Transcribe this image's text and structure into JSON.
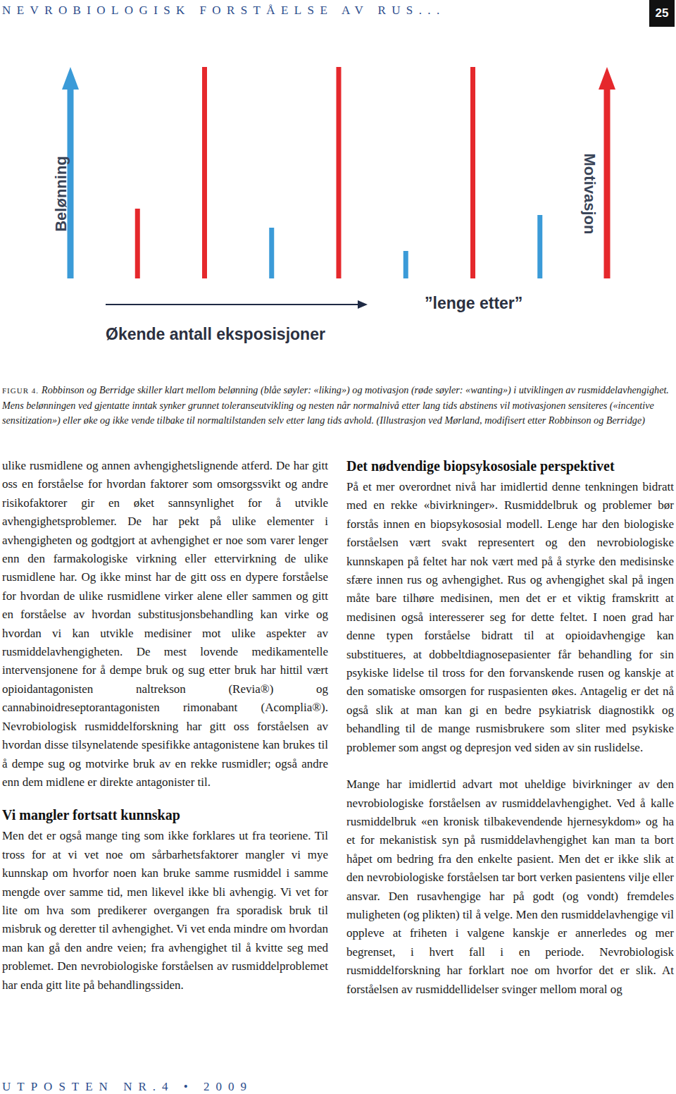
{
  "header": {
    "running_title": "NEVROBIOLOGISK FORSTÅELSE AV RUS...",
    "page_number": "25"
  },
  "chart_data": {
    "type": "bar",
    "categories": [
      null,
      null,
      null,
      null,
      null,
      null,
      null,
      null,
      null
    ],
    "series": [
      {
        "name": "Belønning",
        "color": "#3b9bd8",
        "values": [
          100,
          null,
          null,
          24,
          null,
          13,
          null,
          30,
          null
        ]
      },
      {
        "name": "Motivasjon",
        "color": "#e5282c",
        "values": [
          null,
          33,
          100,
          null,
          100,
          null,
          100,
          null,
          100
        ]
      }
    ],
    "ylim": [
      0,
      100
    ],
    "tick_labels": false,
    "x_label": "Økende antall eksposisjoner",
    "annotation": "”lenge etter”"
  },
  "caption": {
    "label": "FIGUR 4.",
    "text": "Robbinson og Berridge skiller klart mellom belønning (blåe søyler: «liking») og motivasjon (røde søyler: «wanting») i utviklingen av rusmiddelavhengighet. Mens belønningen ved gjentatte inntak synker grunnet toleranseutvikling og nesten når normalnivå etter lang tids abstinens vil motivasjonen sensiteres («incentive sensitization») eller øke og ikke vende tilbake til normaltilstanden selv etter lang tids avhold. (Illustrasjon ved Mørland, modifisert etter Robbinson og Berridge)"
  },
  "body": {
    "left_column": [
      {
        "type": "paragraph",
        "text": "ulike rusmidlene og annen avhengighetslignende atferd. De har gitt oss en forståelse for hvordan faktorer som omsorgssvikt og andre risikofaktorer gir en øket sannsynlighet for å utvikle avhengighetsproblemer. De har pekt på ulike elementer i avhengigheten og godtgjort at avhengighet er noe som varer lenger enn den farmakologiske virkning eller ettervirkning de ulike rusmidlene har. Og ikke minst har de gitt oss en dypere forståelse for hvordan de ulike rusmidlene virker alene eller sammen og gitt en forståelse av hvordan substitusjonsbehandling kan virke og hvordan vi kan utvikle medisiner mot ulike aspekter av rusmiddelavhengigheten. De mest lovende medikamentelle intervensjonene for å dempe bruk og sug etter bruk har hittil vært opioidantagonisten naltrekson (Revia®) og cannabinoidreseptorantagonisten rimonabant (Acomplia®). Nevrobiologisk rusmiddelforskning har gitt oss forståelsen av hvordan disse tilsynelatende spesifikke antagonistene kan brukes til å dempe sug og motvirke bruk av en rekke rusmidler; også andre enn dem midlene er direkte antagonister til."
      },
      {
        "type": "heading",
        "text": "Vi mangler fortsatt kunnskap"
      },
      {
        "type": "paragraph",
        "text": "Men det er også mange ting som ikke forklares ut fra teoriene. Til tross for at vi vet noe om sårbarhetsfaktorer mangler vi mye kunnskap om hvorfor noen kan bruke samme rusmiddel i samme mengde over samme tid, men likevel ikke bli avhengig. Vi vet for lite om hva som predikerer overgangen fra sporadisk bruk til misbruk og deretter til avhengighet. Vi vet enda mindre om hvordan man kan gå den andre veien; fra avhengighet til å kvitte seg med problemet. Den nevrobiologiske forståelsen av rusmiddelproblemet har enda gitt lite på behandlingssiden."
      }
    ],
    "right_column": [
      {
        "type": "heading",
        "text": "Det nødvendige biopsykososiale perspektivet"
      },
      {
        "type": "paragraph",
        "text": "På et mer overordnet nivå har imidlertid denne tenkningen bidratt med en rekke «bivirkninger». Rusmiddelbruk og problemer bør forstås innen en biopsykososial modell. Lenge har den biologiske forståelsen vært svakt representert og den nevrobiologiske kunnskapen på feltet har nok vært med på å styrke den medisinske sfære innen rus og avhengighet. Rus og avhengighet skal på ingen måte bare tilhøre medisinen, men det er et viktig framskritt at medisinen også interesserer seg for dette feltet. I noen grad har denne typen forståelse bidratt til at opioidavhengige kan substitueres, at dobbeltdiagnosepasienter får behandling for sin psykiske lidelse til tross for den forvanskende rusen og kanskje at den somatiske omsorgen for ruspasienten økes. Antagelig er det nå også slik at man kan gi en bedre psykiatrisk diagnostikk og behandling til de mange rusmisbrukere som sliter med psykiske problemer som angst og depresjon ved siden av sin ruslidelse."
      },
      {
        "type": "paragraph",
        "text": "Mange har imidlertid advart mot uheldige bivirkninger av den nevrobiologiske forståelsen av rusmiddelavhengighet. Ved å kalle rusmiddelbruk «en kronisk tilbakevendende hjernesykdom» og ha et for mekanistisk syn på rusmiddelavhengighet kan man ta bort håpet om bedring fra den enkelte pasient. Men det er ikke slik at den nevrobiologiske forståelsen tar bort verken pasientens vilje eller ansvar. Den rusavhengige har på godt (og vondt) fremdeles muligheten (og plikten) til å velge. Men den rusmiddelavhengige vil oppleve at friheten i valgene kanskje er annerledes og mer begrenset, i hvert fall i en periode. Nevrobiologisk rusmiddelforskning har forklart noe om hvorfor det er slik. At forståelsen av rusmiddellidelser svinger mellom moral og"
      }
    ]
  },
  "footer": {
    "text": "UTPOSTEN NR.4 • 2009"
  }
}
